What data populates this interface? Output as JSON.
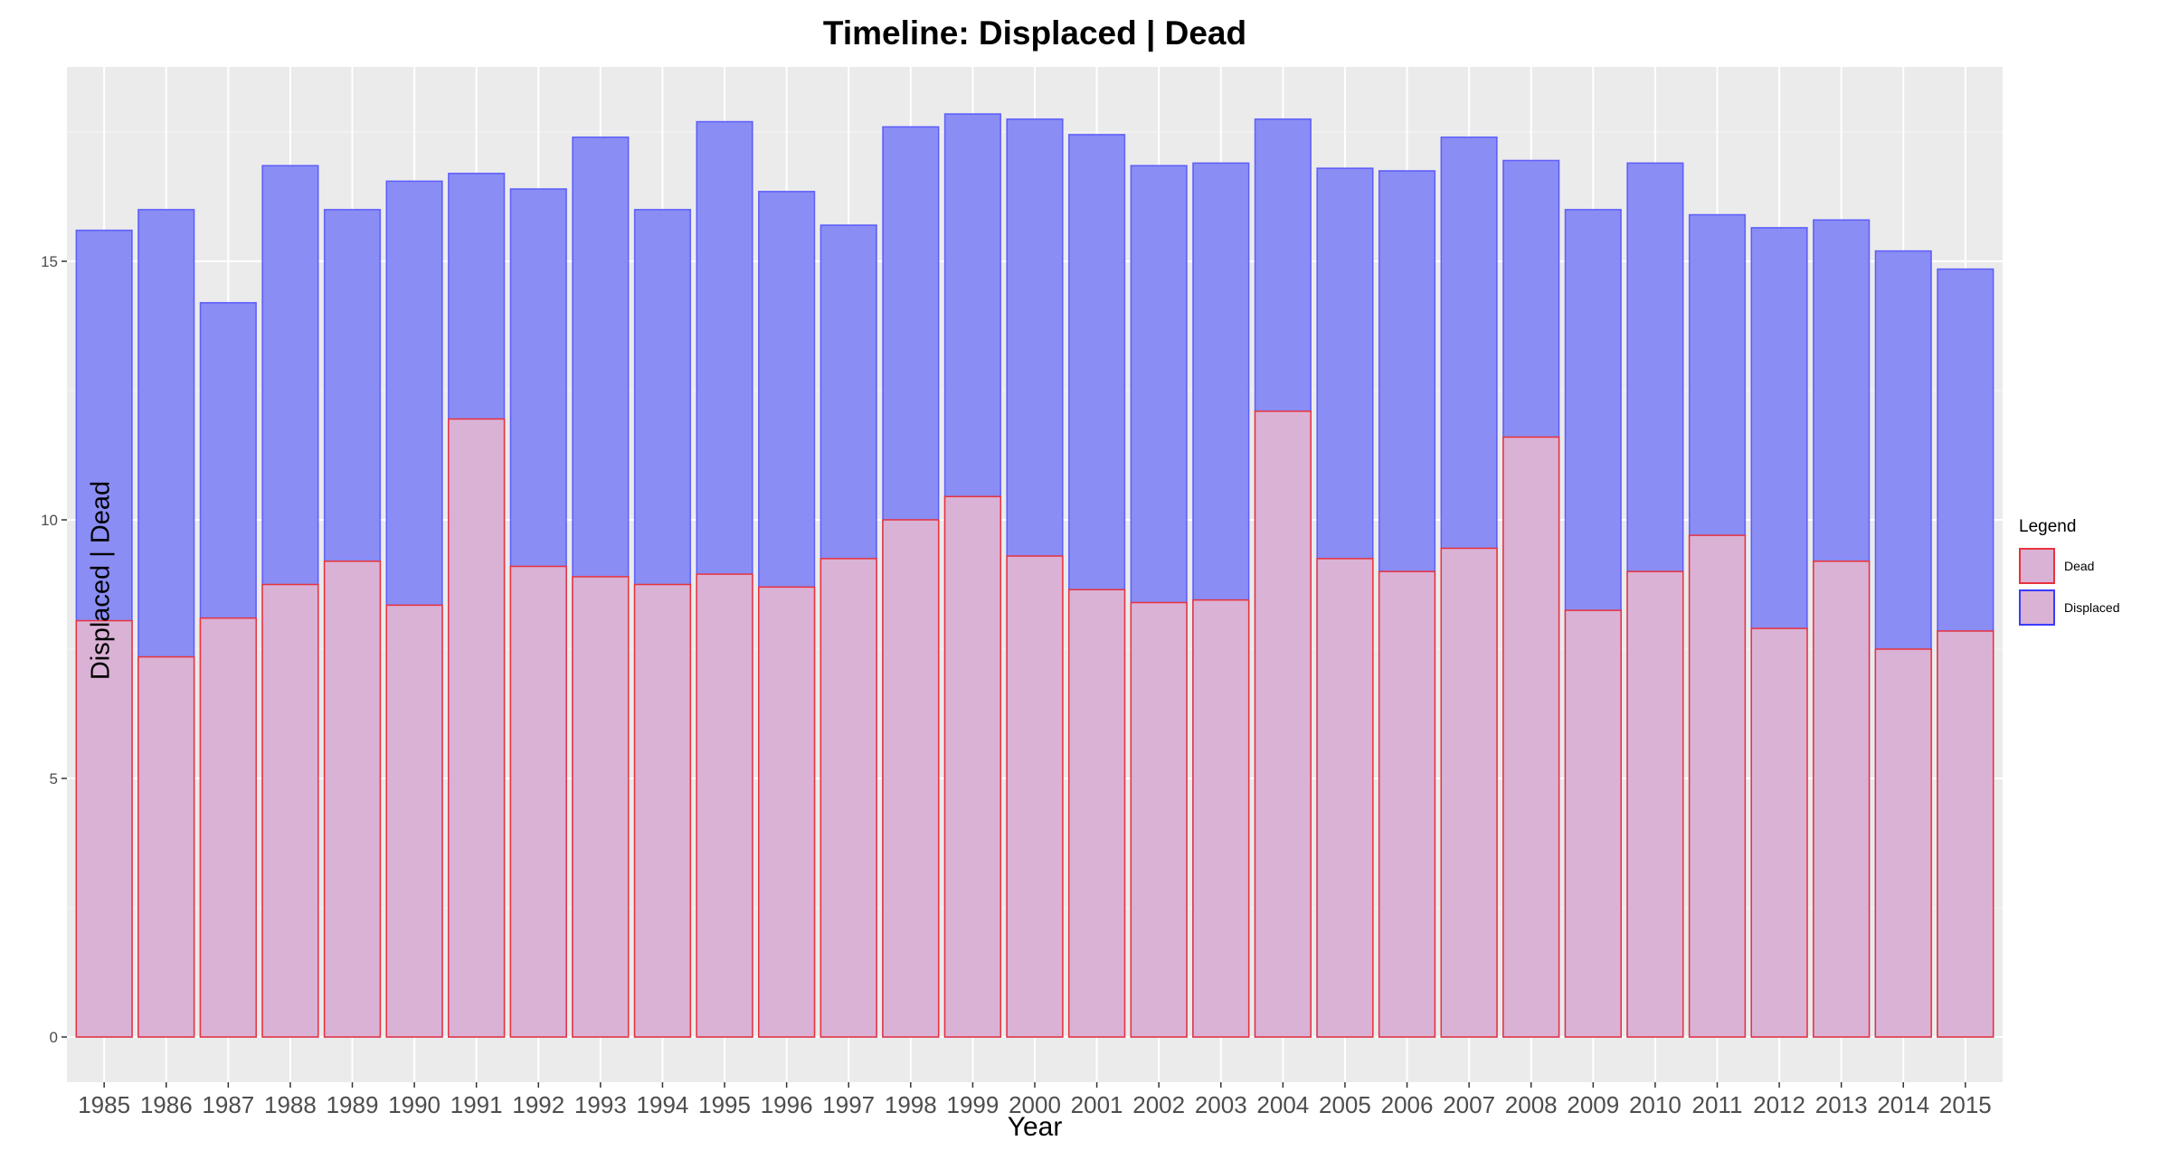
{
  "chart_data": {
    "type": "bar",
    "title": "Timeline: Displaced | Dead",
    "xlabel": "Year",
    "ylabel": "Displaced | Dead",
    "ylim": [
      0,
      18.4
    ],
    "yticks": [
      0,
      5,
      10,
      15
    ],
    "grid": true,
    "legend_title": "Legend",
    "legend_position": "right",
    "categories": [
      "1985",
      "1986",
      "1987",
      "1988",
      "1989",
      "1990",
      "1991",
      "1992",
      "1993",
      "1994",
      "1995",
      "1996",
      "1997",
      "1998",
      "1999",
      "2000",
      "2001",
      "2002",
      "2003",
      "2004",
      "2005",
      "2006",
      "2007",
      "2008",
      "2009",
      "2010",
      "2011",
      "2012",
      "2013",
      "2014",
      "2015"
    ],
    "series": [
      {
        "name": "Displaced",
        "fill": "#8a8df3",
        "stroke": "#3b3bff",
        "values": [
          15.6,
          16.0,
          14.2,
          16.85,
          16.0,
          16.55,
          16.7,
          16.4,
          17.4,
          16.0,
          17.7,
          16.35,
          15.7,
          17.6,
          17.85,
          17.75,
          17.45,
          16.85,
          16.9,
          17.75,
          16.8,
          16.75,
          17.4,
          16.95,
          16.0,
          16.9,
          15.9,
          15.65,
          15.8,
          15.2,
          14.85
        ]
      },
      {
        "name": "Dead",
        "fill": "#dab2d6",
        "stroke": "#e8323c",
        "values": [
          8.05,
          7.35,
          8.1,
          8.75,
          9.2,
          8.35,
          11.95,
          9.1,
          8.9,
          8.75,
          8.95,
          8.7,
          9.25,
          10.0,
          10.45,
          9.3,
          8.65,
          8.4,
          8.45,
          12.1,
          9.25,
          9.0,
          9.45,
          11.6,
          8.25,
          9.0,
          9.7,
          7.9,
          9.2,
          7.5,
          7.85
        ]
      }
    ]
  },
  "colors": {
    "panel_background": "#ebebeb",
    "grid_major": "#ffffff",
    "axis_text": "#4d4d4d"
  }
}
